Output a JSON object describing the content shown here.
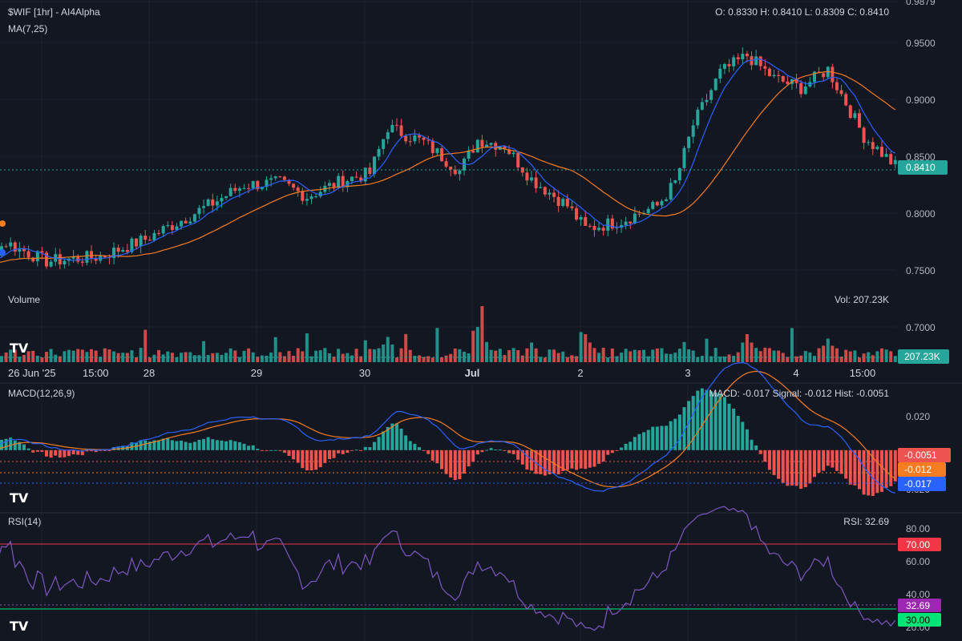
{
  "header": {
    "title": "$WIF [1hr] - AI4Alpha",
    "ohlc": "O: 0.8330 H: 0.8410 L: 0.8309 C: 0.8410",
    "ma_label": "MA(7,25)"
  },
  "volume_panel": {
    "label": "Volume",
    "value_text": "Vol: 207.23K",
    "tag": "207.23K"
  },
  "macd_panel": {
    "label": "MACD(12,26,9)",
    "values_text": "MACD: -0.017 Signal: -0.012 Hist: -0.0051",
    "tags": {
      "hist": "-0.0051",
      "signal": "-0.012",
      "macd": "-0.017"
    },
    "axis_labels": [
      "0.020",
      "0.020"
    ]
  },
  "rsi_panel": {
    "label": "RSI(14)",
    "value_text": "RSI: 32.69",
    "axis_labels": [
      "80.00",
      "60.00",
      "40.00",
      "20.00"
    ],
    "tags": {
      "rsi": "32.69",
      "upper": "70.00",
      "lower": "30.00"
    }
  },
  "price_axis": [
    "0.9879",
    "0.9500",
    "0.9000",
    "0.8500",
    "0.8000",
    "0.7500",
    "0.7000"
  ],
  "price_tag": "0.8410",
  "date_labels": [
    "26 Jun '25",
    "15:00",
    "28",
    "29",
    "30",
    "Jul",
    "2",
    "3",
    "4",
    "15:00"
  ],
  "logo_text": "TV",
  "colors": {
    "background": "#131722",
    "up": "#26a69a",
    "down": "#ef5350",
    "ma_fast": "#2962ff",
    "ma_slow": "#f57c20",
    "rsi": "#7e57c2",
    "macd": "#2962ff",
    "signal": "#f57c20",
    "rsi_upper": "#f23645",
    "rsi_lower": "#00e676"
  },
  "chart_data": [
    {
      "type": "candlestick",
      "title": "$WIF [1hr] - AI4Alpha",
      "ylim": [
        0.6969,
        0.9879
      ],
      "x_start": "2025-06-26 00:00",
      "interval": "1h",
      "close_anchors": [
        [
          "2025-06-26 00:00",
          0.76
        ],
        [
          "2025-06-26 08:00",
          0.757
        ],
        [
          "2025-06-26 15:00",
          0.778
        ],
        [
          "2025-06-27 00:00",
          0.762
        ],
        [
          "2025-06-27 12:00",
          0.766
        ],
        [
          "2025-06-27 22:00",
          0.781
        ],
        [
          "2025-06-28 12:00",
          0.81
        ],
        [
          "2025-06-28 20:00",
          0.828
        ],
        [
          "2025-06-29 04:00",
          0.83
        ],
        [
          "2025-06-29 10:00",
          0.818
        ],
        [
          "2025-06-29 18:00",
          0.832
        ],
        [
          "2025-06-30 00:00",
          0.838
        ],
        [
          "2025-06-30 04:00",
          0.878
        ],
        [
          "2025-06-30 12:00",
          0.865
        ],
        [
          "2025-06-30 20:00",
          0.84
        ],
        [
          "2025-07-01 00:00",
          0.867
        ],
        [
          "2025-07-01 06:00",
          0.862
        ],
        [
          "2025-07-01 12:00",
          0.833
        ],
        [
          "2025-07-01 20:00",
          0.81
        ],
        [
          "2025-07-02 00:00",
          0.79
        ],
        [
          "2025-07-02 08:00",
          0.797
        ],
        [
          "2025-07-02 16:00",
          0.81
        ],
        [
          "2025-07-02 20:00",
          0.83
        ],
        [
          "2025-07-03 00:00",
          0.88
        ],
        [
          "2025-07-03 06:00",
          0.925
        ],
        [
          "2025-07-03 12:00",
          0.94
        ],
        [
          "2025-07-03 18:00",
          0.92
        ],
        [
          "2025-07-04 00:00",
          0.912
        ],
        [
          "2025-07-04 06:00",
          0.928
        ],
        [
          "2025-07-04 14:00",
          0.87
        ],
        [
          "2025-07-04 22:00",
          0.841
        ]
      ],
      "last": {
        "open": 0.833,
        "high": 0.841,
        "low": 0.8309,
        "close": 0.841
      },
      "ma_periods": [
        7,
        25
      ]
    },
    {
      "type": "bar",
      "title": "Volume",
      "last_value": "207.23K",
      "spike_anchors": [
        [
          "2025-06-30 04:00",
          0.45
        ],
        [
          "2025-07-01 00:00",
          0.8
        ],
        [
          "2025-07-01 01:00",
          1.0
        ],
        [
          "2025-07-01 12:00",
          0.35
        ],
        [
          "2025-07-02 00:00",
          0.5
        ],
        [
          "2025-07-03 12:00",
          0.5
        ],
        [
          "2025-07-04 06:00",
          0.42
        ]
      ]
    },
    {
      "type": "line",
      "title": "MACD(12,26,9)",
      "series": [
        {
          "name": "MACD",
          "last": -0.017
        },
        {
          "name": "Signal",
          "last": -0.012
        },
        {
          "name": "Hist",
          "last": -0.0051
        }
      ],
      "ylim": [
        -0.02,
        0.024
      ]
    },
    {
      "type": "line",
      "title": "RSI(14)",
      "series": [
        {
          "name": "RSI",
          "last": 32.69
        }
      ],
      "ylim": [
        20,
        85
      ],
      "levels": [
        70,
        30
      ]
    }
  ]
}
